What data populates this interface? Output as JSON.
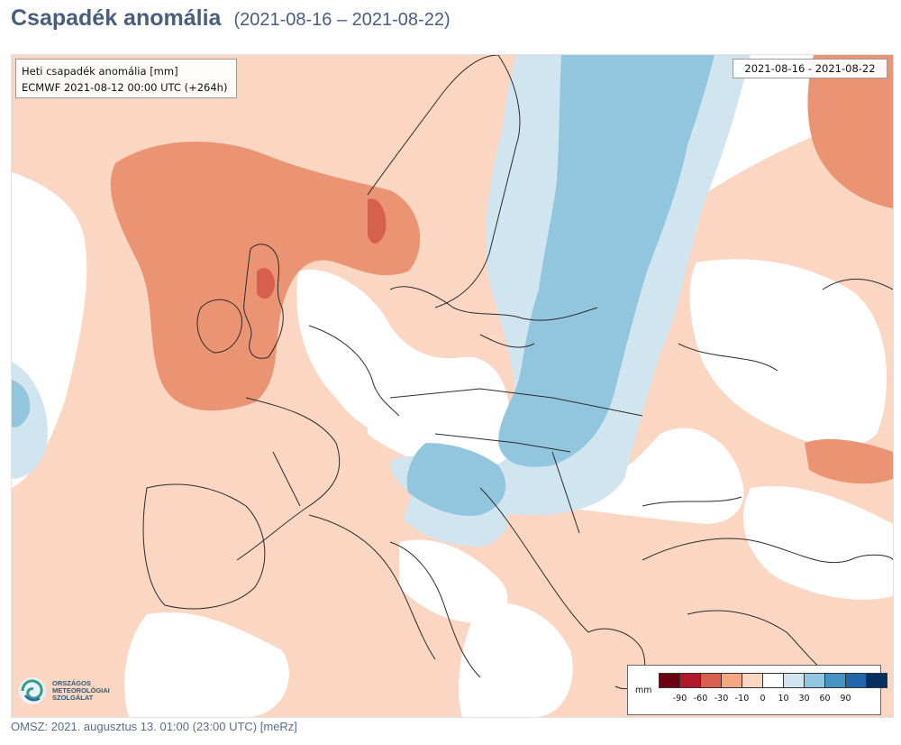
{
  "header": {
    "title": "Csapadék anomália",
    "date_range": "(2021-08-16 – 2021-08-22)"
  },
  "map": {
    "info_line1": "Heti csapadék anomália [mm]",
    "info_line2": "ECMWF 2021-08-12 00:00 UTC (+264h)",
    "valid_period": "2021-08-16 - 2021-08-22",
    "legend": {
      "unit": "mm",
      "labels": [
        "-90",
        "-60",
        "-30",
        "-10",
        "0",
        "10",
        "30",
        "60",
        "90"
      ],
      "colors": [
        "#6b0011",
        "#b2182b",
        "#d6604d",
        "#f4a582",
        "#fbd6c2",
        "#ffffff",
        "#d1e5f0",
        "#92c5de",
        "#4393c3",
        "#2166ac",
        "#053061"
      ]
    },
    "logo_lines": [
      "Országos",
      "Meteorológiai",
      "Szolgálat"
    ]
  },
  "footer": {
    "text": "OMSZ: 2021. augusztus 13. 01:00 (23:00  UTC)  [meRz]"
  },
  "colors": {
    "title": "#4a5d7e",
    "dry_light": "#fbd6c2",
    "dry_medium": "#eb9474",
    "dry_strong": "#d6604d",
    "wet_light": "#d1e5f0",
    "wet_medium": "#92c5de"
  }
}
